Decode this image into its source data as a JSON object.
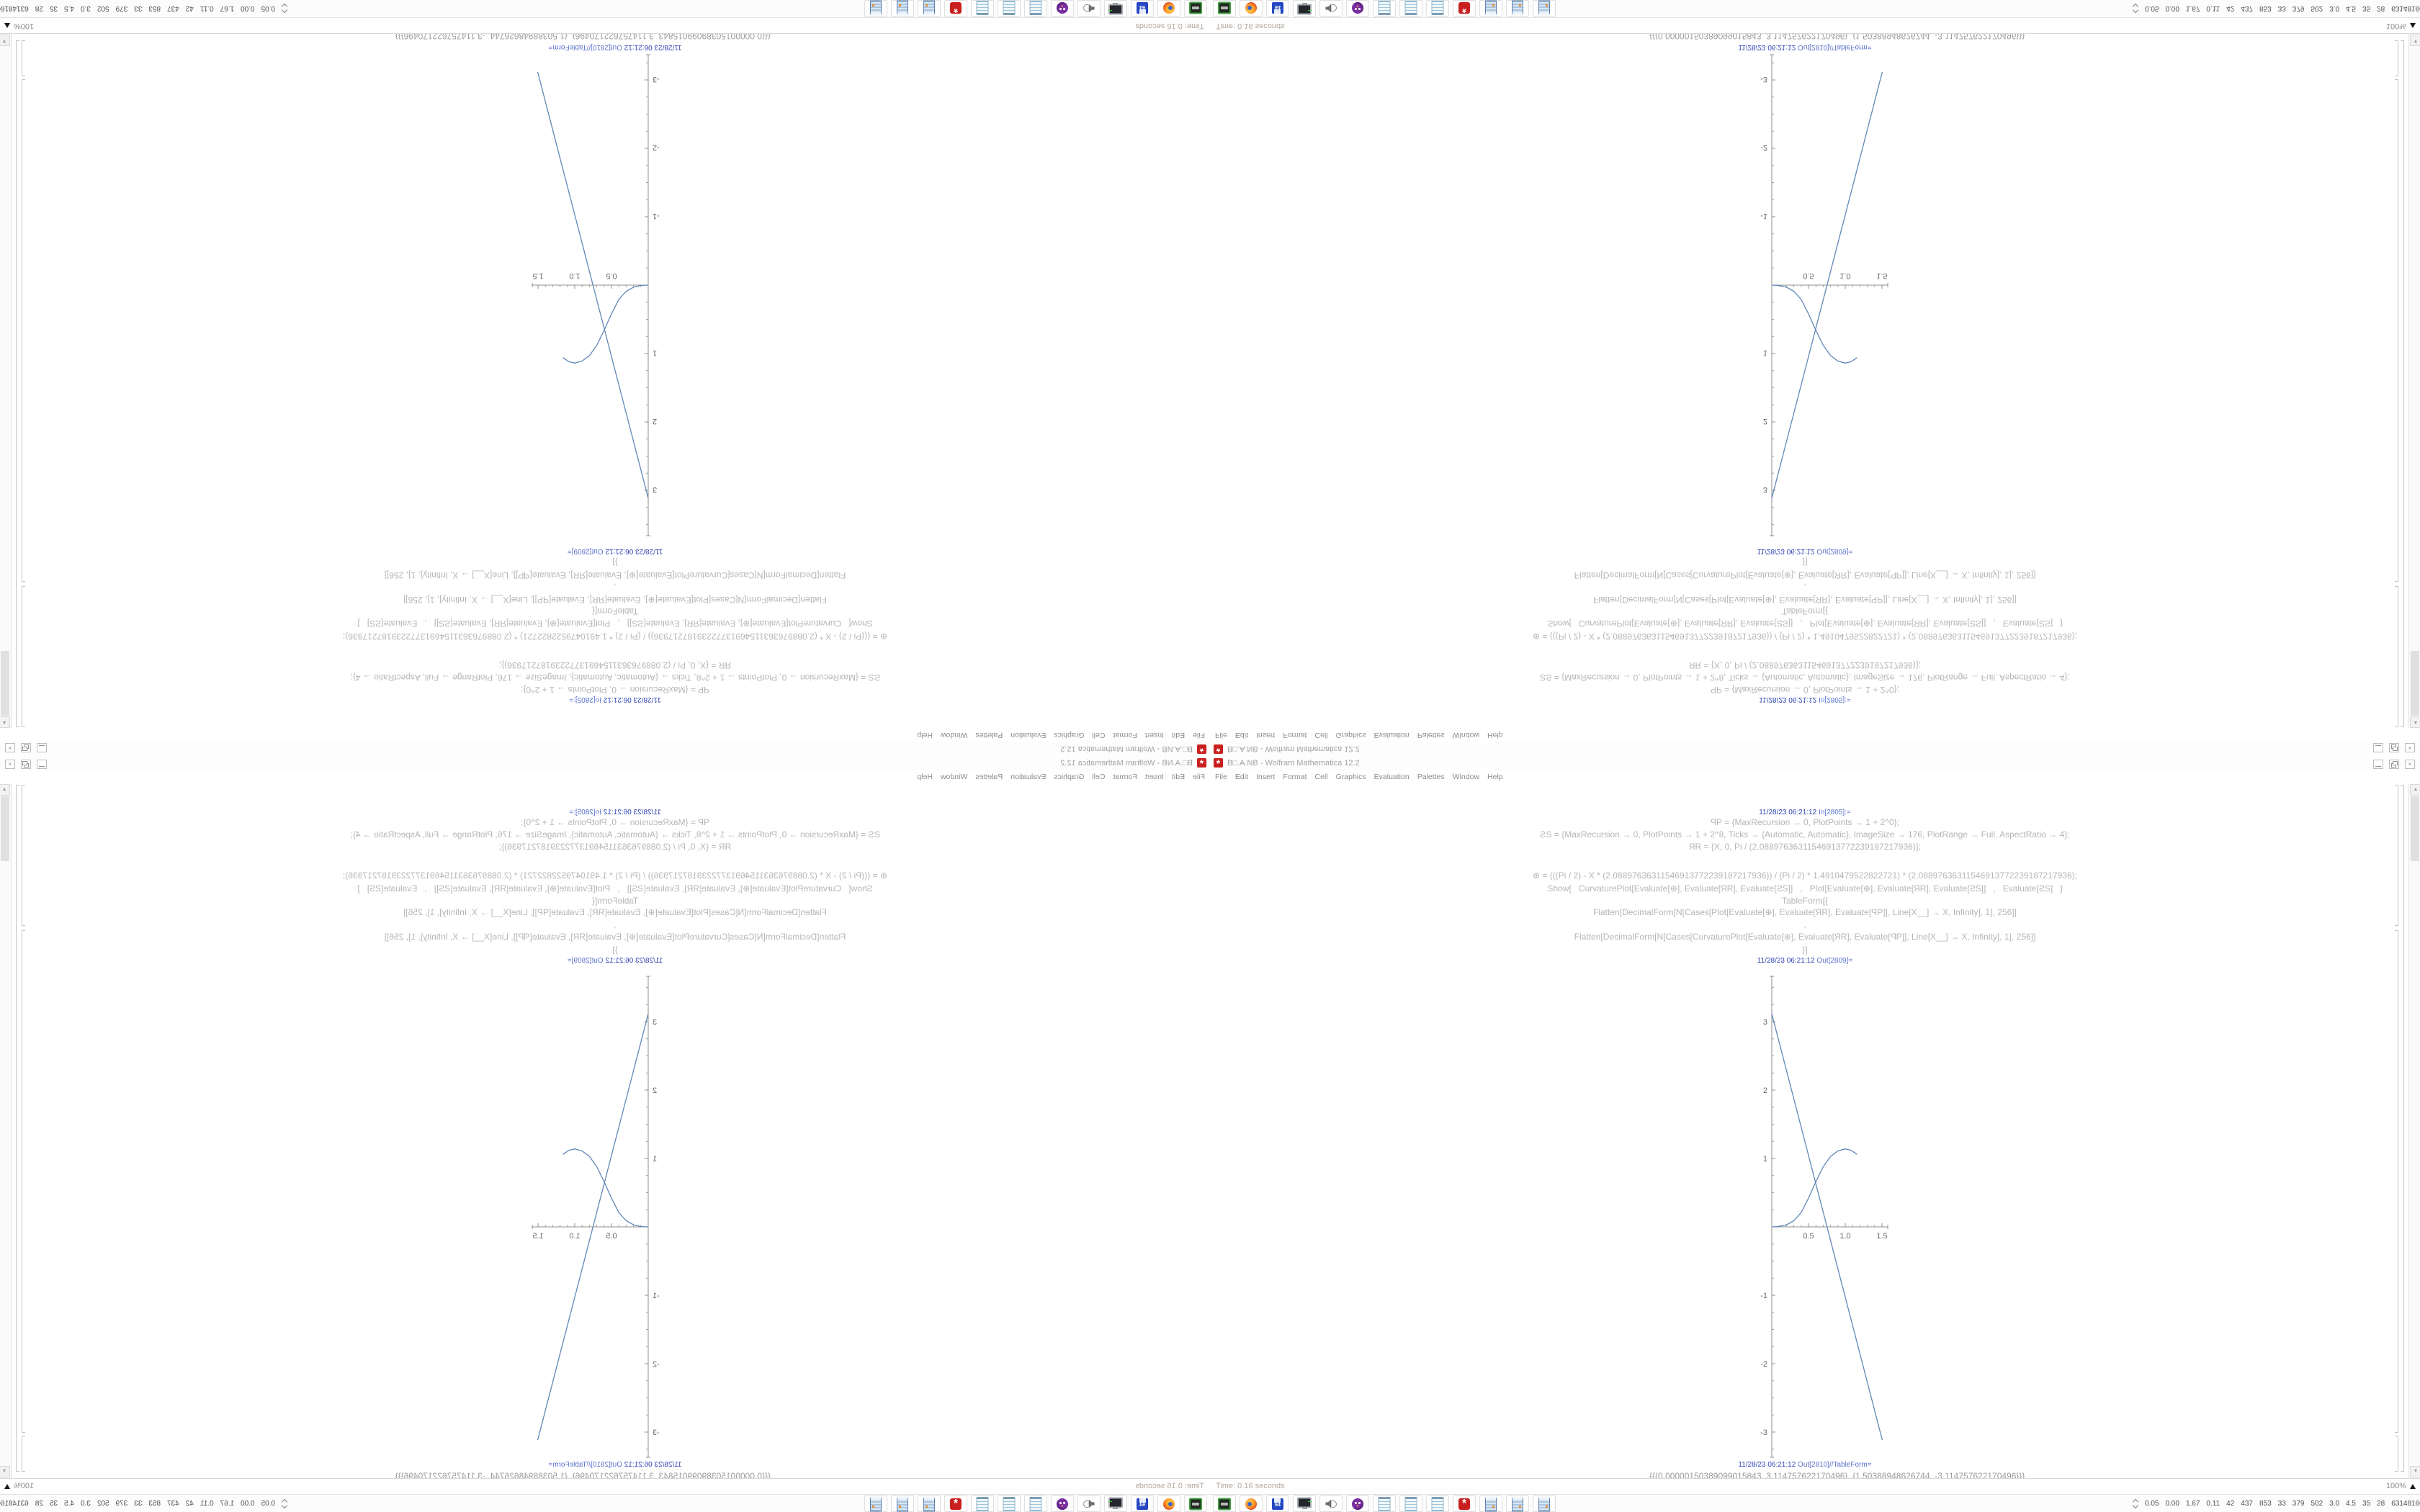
{
  "window": {
    "title": "B□.A.NB - Wolfram Mathematica 12.2"
  },
  "menu": {
    "items": [
      "File",
      "Edit",
      "Insert",
      "Format",
      "Cell",
      "Graphics",
      "Evaluation",
      "Palettes",
      "Window",
      "Help"
    ]
  },
  "notebook": {
    "in_label": {
      "timestamp": "11/28/23 06:21:12",
      "label": "In[2805]:="
    },
    "code_lines": [
      "ꟼP = {MaxRecursion → 0, PlotPoints → 1 + 2^0};",
      "ꙄS = {MaxRecursion → 0, PlotPoints → 1 + 2^8, Ticks → {Automatic, Automatic}, ImageSize → 176, PlotRange → Full, AspectRatio → 4};",
      "ЯR = {X, 0, Pi / (2.08897636311546913772239187217936)};",
      "⊕ = (((Pi / 2) - X * (2.08897636311546913772239187217936)) / (Pi / 2) * 1.4910479522822721) * (2.08897636311546913772239187217936);",
      "Show[   CurvaturePlot[Evaluate[⊕], Evaluate[ЯR], Evaluate[ꙄS]]   ,   Plot[Evaluate[⊕], Evaluate[ЯR], Evaluate[ꙄS]]   ,   Evaluate[ꙄS]   ]",
      "TableForm[{",
      "Flatten[DecimalForm[N[Cases[Plot[Evaluate[⊕], Evaluate[ЯR], Evaluate[ꟼP]], Line[X__] → X, Infinity], 1], 256]]",
      ",",
      "Flatten[DecimalForm[N[Cases[CurvaturePlot[Evaluate[⊕], Evaluate[ЯR], Evaluate[ꟼP]], Line[X__] → X, Infinity], 1], 256]]",
      "}]"
    ],
    "out_label_1": {
      "timestamp": "11/28/23 06:21:12",
      "label": "Out[2809]="
    },
    "out_label_2": {
      "timestamp": "11/28/23 06:21:12",
      "label": "Out[2810]//TableForm="
    },
    "output_rows": [
      "{{{0.00000150389099015843, 3.114757622170496}, {1.50388948626744, -3.114757622170496}}}",
      "{{{0., 0.}, {1.0000000000000001, 1.0000000000000003}}}"
    ]
  },
  "chart_data": {
    "type": "line",
    "title": "",
    "xlabel": "",
    "ylabel": "",
    "xlim": [
      0,
      1.58
    ],
    "ylim": [
      -3.37,
      3.66
    ],
    "xticks": [
      0.5,
      1.0,
      1.5
    ],
    "yticks": [
      -3,
      -2,
      -1,
      1,
      2,
      3
    ],
    "grid": false,
    "legend": false,
    "line_color": "#6287b8",
    "axis_color": "#8f8f8f",
    "series": [
      {
        "name": "linear-plot",
        "points": [
          [
            0,
            3.1147576
          ],
          [
            1.50388948626744,
            -3.114757622170496
          ]
        ]
      },
      {
        "name": "curvature-plot",
        "points": [
          [
            0,
            0
          ],
          [
            0.1,
            0.005
          ],
          [
            0.2,
            0.03
          ],
          [
            0.3,
            0.09
          ],
          [
            0.4,
            0.21
          ],
          [
            0.5,
            0.42
          ],
          [
            0.6,
            0.66
          ],
          [
            0.7,
            0.88
          ],
          [
            0.8,
            1.03
          ],
          [
            0.9,
            1.11
          ],
          [
            1.0,
            1.14
          ],
          [
            1.08,
            1.12
          ],
          [
            1.16,
            1.06
          ]
        ]
      }
    ]
  },
  "status": {
    "time": "Time: 0.16 seconds",
    "zoom": "100%"
  },
  "taskbar": {
    "icons": [
      {
        "name": "removable-drive"
      },
      {
        "name": "firefox"
      },
      {
        "name": "floppy-64"
      },
      {
        "name": "display-settings"
      },
      {
        "name": "speaker"
      },
      {
        "name": "purple-mascot"
      },
      {
        "name": "notepad"
      },
      {
        "name": "notepad"
      },
      {
        "name": "notepad"
      },
      {
        "name": "mathematica"
      },
      {
        "name": "calculator"
      },
      {
        "name": "calculator"
      },
      {
        "name": "calculator"
      }
    ],
    "floppy_label": "64",
    "tray_numbers": [
      "0.05",
      "0.00",
      "1.67",
      "0.11",
      "42",
      "437",
      "853",
      "33",
      "379",
      "502",
      "3.0",
      "4.5",
      "35",
      "28",
      "63148160"
    ]
  },
  "colors": {
    "plot_blue": "#6287b8",
    "label_blue": "#2d43b4",
    "code_gray": "#b5b5b5",
    "output_gray": "#9c9c9c",
    "mathematica_red": "#c9201f"
  }
}
